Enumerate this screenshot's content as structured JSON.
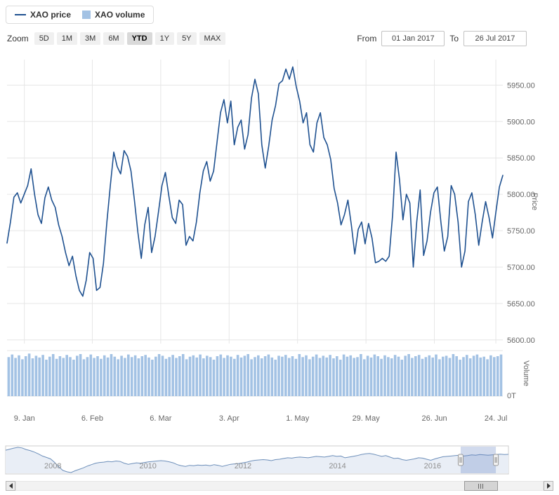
{
  "legend": {
    "items": [
      {
        "label": "XAO price",
        "type": "line"
      },
      {
        "label": "XAO volume",
        "type": "square"
      }
    ]
  },
  "range_selector": {
    "zoom_label": "Zoom",
    "buttons": [
      "5D",
      "1M",
      "3M",
      "6M",
      "YTD",
      "1Y",
      "5Y",
      "MAX"
    ],
    "selected": "YTD",
    "from_label": "From",
    "from_value": "01 Jan 2017",
    "to_label": "To",
    "to_value": "26 Jul 2017"
  },
  "colors": {
    "price_line": "#1f5190",
    "volume_bar": "#a3c2e4",
    "grid": "#e6e6e6",
    "axis_text": "#666666",
    "nav_line": "#6d8fba",
    "nav_fill": "#e9eef6",
    "nav_label": "#8f8f8f",
    "mask": "rgba(102,133,194,0.3)",
    "handle_fill": "#f2f2f2",
    "handle_stroke": "#999999"
  },
  "chart_data": [
    {
      "type": "line",
      "name": "XAO price",
      "ylabel": "Price",
      "ylim": [
        5595,
        5985
      ],
      "yticks": [
        {
          "v": 5600,
          "label": "5600.00"
        },
        {
          "v": 5650,
          "label": "5650.00"
        },
        {
          "v": 5700,
          "label": "5700.00"
        },
        {
          "v": 5750,
          "label": "5750.00"
        },
        {
          "v": 5800,
          "label": "5800.00"
        },
        {
          "v": 5850,
          "label": "5850.00"
        },
        {
          "v": 5900,
          "label": "5900.00"
        },
        {
          "v": 5950,
          "label": "5950.00"
        }
      ],
      "xticks": [
        {
          "label": "9. Jan",
          "f": 0.035
        },
        {
          "label": "6. Feb",
          "f": 0.172
        },
        {
          "label": "6. Mar",
          "f": 0.31
        },
        {
          "label": "3. Apr",
          "f": 0.448
        },
        {
          "label": "1. May",
          "f": 0.586
        },
        {
          "label": "29. May",
          "f": 0.724
        },
        {
          "label": "26. Jun",
          "f": 0.862
        },
        {
          "label": "24. Jul",
          "f": 0.986
        }
      ],
      "values": [
        5733,
        5762,
        5796,
        5802,
        5788,
        5800,
        5812,
        5835,
        5800,
        5772,
        5760,
        5795,
        5810,
        5792,
        5782,
        5758,
        5742,
        5720,
        5702,
        5715,
        5688,
        5668,
        5660,
        5682,
        5720,
        5712,
        5668,
        5672,
        5705,
        5762,
        5812,
        5858,
        5838,
        5828,
        5860,
        5852,
        5832,
        5792,
        5748,
        5712,
        5758,
        5782,
        5720,
        5742,
        5776,
        5812,
        5830,
        5798,
        5768,
        5760,
        5792,
        5786,
        5730,
        5742,
        5736,
        5762,
        5802,
        5832,
        5845,
        5818,
        5832,
        5872,
        5912,
        5930,
        5898,
        5928,
        5868,
        5892,
        5902,
        5862,
        5882,
        5932,
        5958,
        5938,
        5868,
        5836,
        5866,
        5902,
        5922,
        5952,
        5956,
        5972,
        5958,
        5975,
        5948,
        5928,
        5898,
        5912,
        5868,
        5858,
        5898,
        5912,
        5878,
        5868,
        5848,
        5808,
        5788,
        5758,
        5772,
        5792,
        5758,
        5718,
        5752,
        5762,
        5732,
        5760,
        5740,
        5706,
        5708,
        5712,
        5708,
        5715,
        5772,
        5858,
        5820,
        5765,
        5800,
        5788,
        5700,
        5762,
        5806,
        5716,
        5736,
        5775,
        5802,
        5810,
        5762,
        5722,
        5742,
        5812,
        5800,
        5762,
        5700,
        5722,
        5790,
        5802,
        5772,
        5730,
        5762,
        5790,
        5768,
        5740,
        5776,
        5810,
        5826
      ]
    },
    {
      "type": "bar",
      "name": "XAO volume",
      "ylabel": "Volume",
      "baseline_label": "0T",
      "ymax": 105,
      "values": [
        90,
        96,
        88,
        94,
        85,
        92,
        98,
        87,
        93,
        89,
        95,
        84,
        91,
        97,
        86,
        92,
        88,
        95,
        90,
        84,
        93,
        97,
        85,
        90,
        96,
        88,
        92,
        86,
        94,
        89,
        97,
        91,
        85,
        93,
        88,
        96,
        90,
        94,
        87,
        92,
        95,
        89,
        84,
        91,
        97,
        93,
        86,
        90,
        95,
        88,
        92,
        97,
        85,
        91,
        94,
        89,
        96,
        87,
        93,
        90,
        84,
        92,
        96,
        88,
        94,
        91,
        86,
        95,
        89,
        93,
        97,
        85,
        90,
        94,
        87,
        92,
        96,
        89,
        84,
        93,
        91,
        95,
        88,
        92,
        86,
        97,
        90,
        94,
        85,
        91,
        96,
        88,
        93,
        89,
        95,
        87,
        92,
        84,
        96,
        91,
        94,
        88,
        90,
        97,
        85,
        93,
        89,
        96,
        92,
        86,
        94,
        90,
        87,
        95,
        91,
        84,
        93,
        97,
        88,
        92,
        95,
        86,
        90,
        94,
        89,
        96,
        85,
        91,
        93,
        88,
        97,
        92,
        84,
        90,
        95,
        87,
        93,
        96,
        89,
        91,
        85,
        94,
        90,
        92,
        96
      ]
    },
    {
      "type": "area",
      "name": "navigator",
      "ylim": [
        3200,
        6900
      ],
      "xticks": [
        {
          "label": "2008",
          "f": 0.094
        },
        {
          "label": "2010",
          "f": 0.283
        },
        {
          "label": "2012",
          "f": 0.472
        },
        {
          "label": "2014",
          "f": 0.66
        },
        {
          "label": "2016",
          "f": 0.849
        }
      ],
      "selection": {
        "from": 0.905,
        "to": 0.975
      },
      "values": [
        6400,
        6550,
        6700,
        6800,
        6720,
        6500,
        6350,
        6150,
        5900,
        5600,
        5400,
        5200,
        4700,
        4100,
        3600,
        3400,
        3300,
        3550,
        3750,
        3950,
        4200,
        4400,
        4600,
        4700,
        4750,
        4850,
        4800,
        4900,
        4850,
        4600,
        4450,
        4550,
        4650,
        4600,
        4700,
        4800,
        4850,
        4900,
        4950,
        4900,
        4800,
        4650,
        4400,
        4250,
        4150,
        4300,
        4250,
        4350,
        4300,
        4350,
        4250,
        4400,
        4300,
        4150,
        4300,
        4450,
        4500,
        4550,
        4650,
        4750,
        4900,
        5000,
        5050,
        5100,
        5050,
        4950,
        5100,
        5150,
        5250,
        5350,
        5300,
        5400,
        5450,
        5400,
        5350,
        5450,
        5550,
        5500,
        5450,
        5550,
        5650,
        5550,
        5600,
        5350,
        5450,
        5550,
        5650,
        5800,
        5900,
        5950,
        5850,
        5700,
        5550,
        5650,
        5450,
        5250,
        5300,
        5100,
        5000,
        5100,
        5200,
        5350,
        5300,
        5150,
        5000,
        5200,
        5350,
        5500,
        5550,
        5600,
        5650,
        5700,
        5600,
        5650,
        5750,
        5700,
        5800,
        5750,
        5700,
        5750,
        5800,
        5850,
        5800,
        5830
      ]
    }
  ]
}
